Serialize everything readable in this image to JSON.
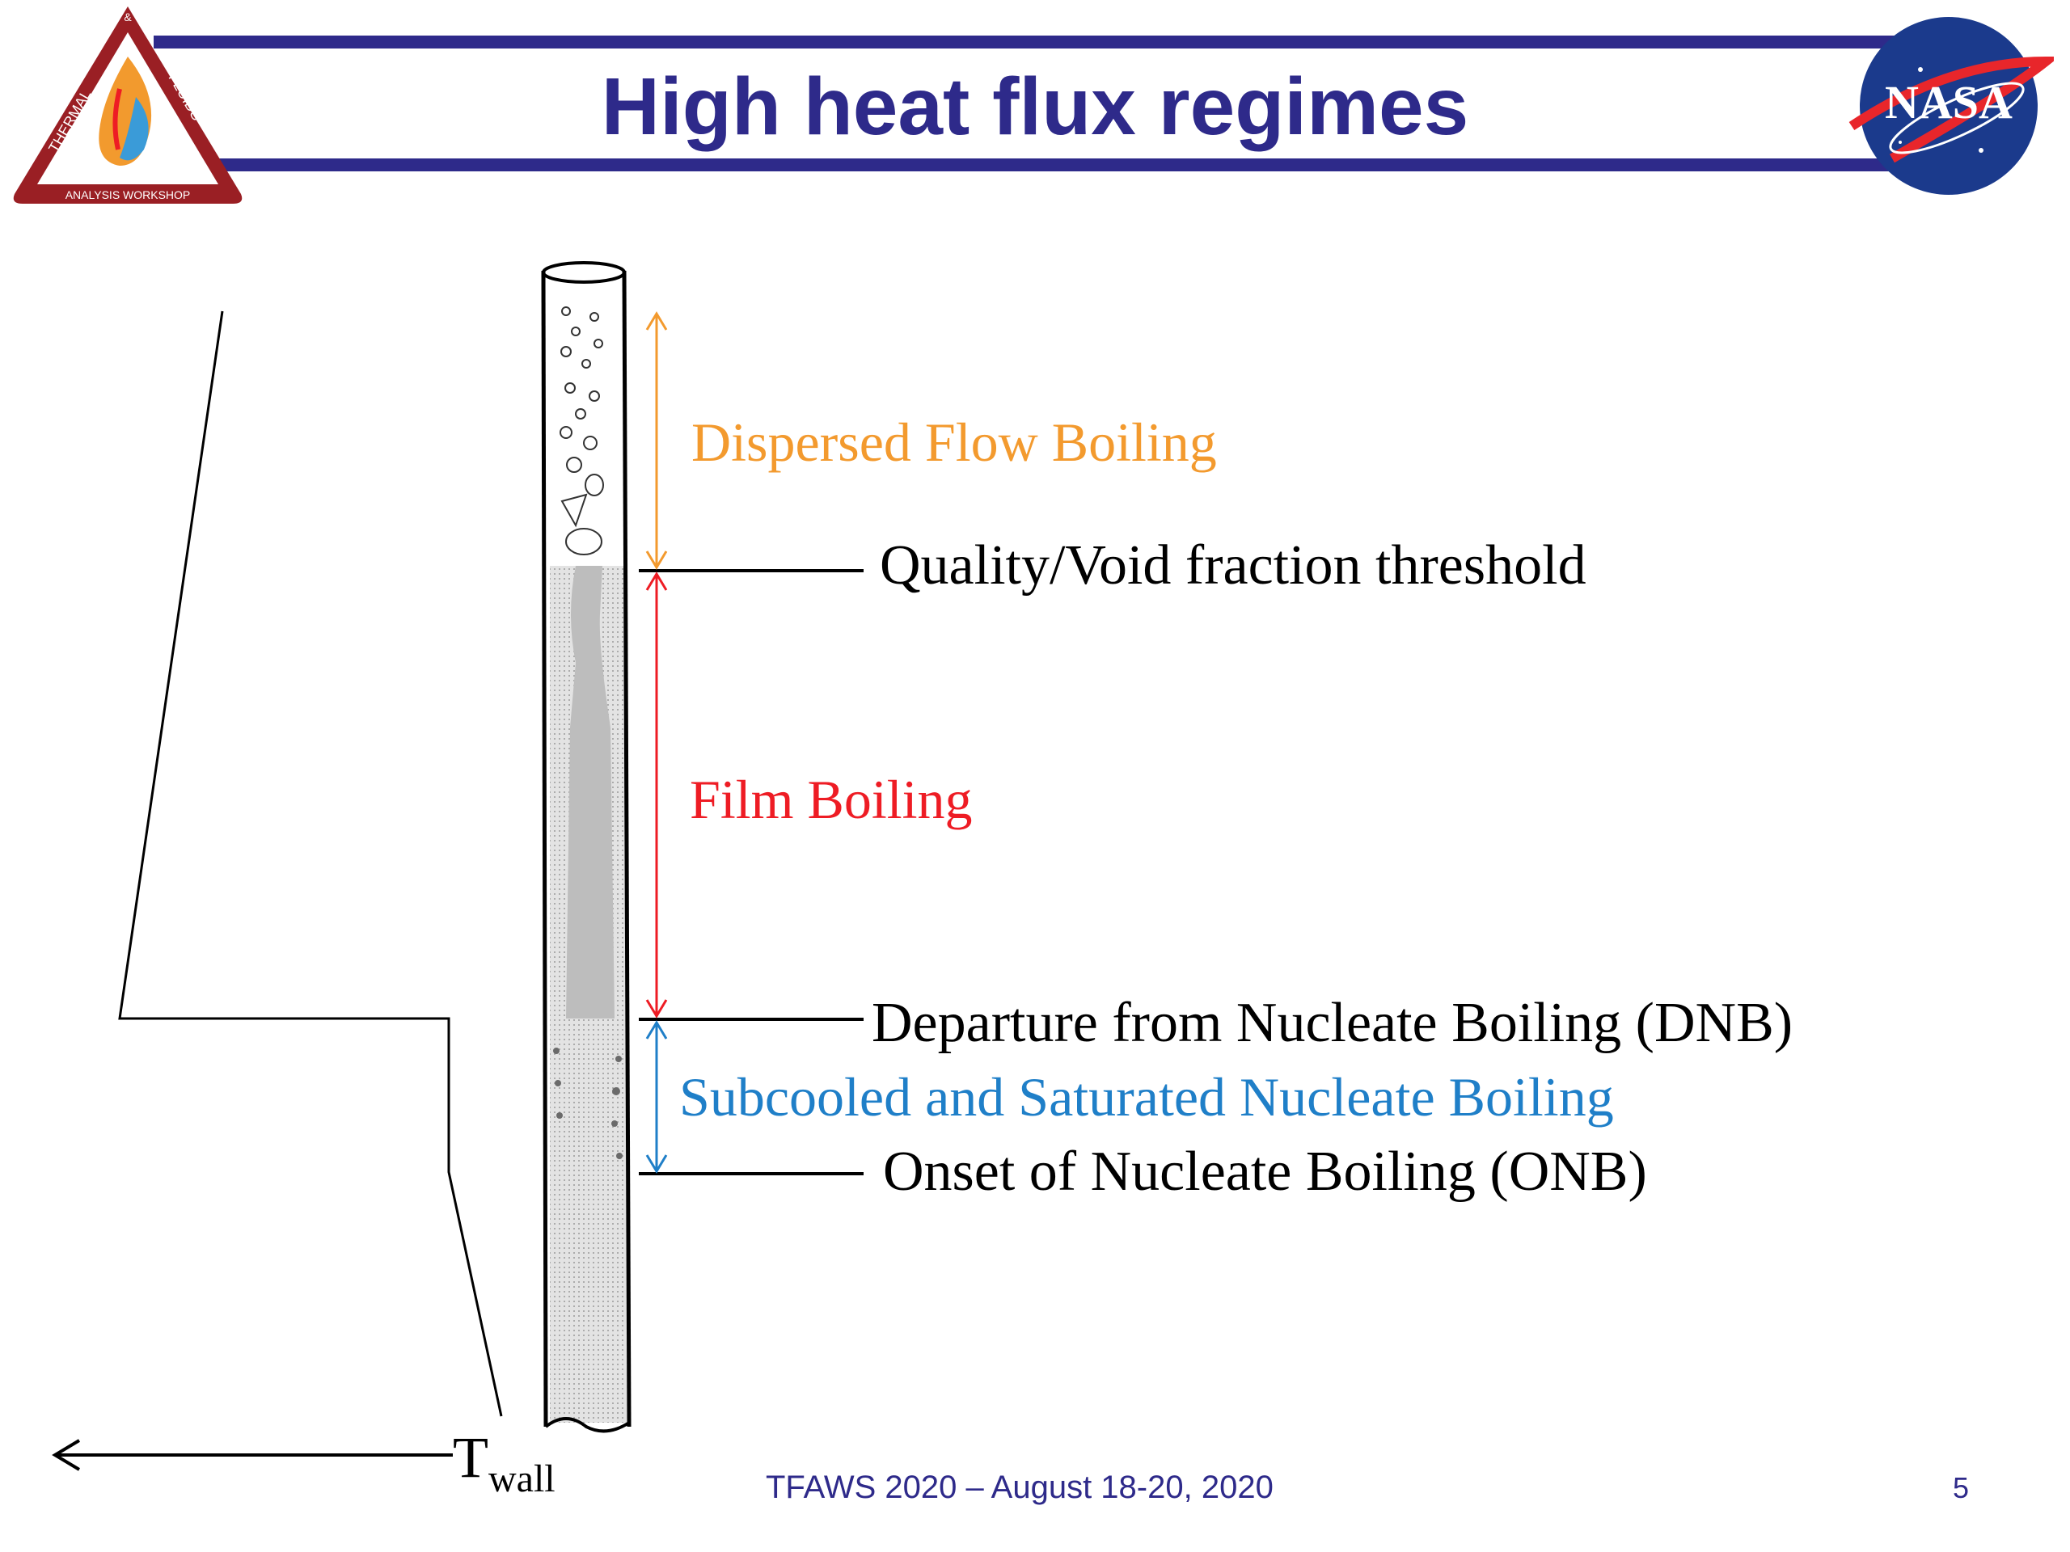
{
  "slide": {
    "title": "High heat flux regimes",
    "footer_text": "TFAWS 2020 – August 18-20, 2020",
    "page_number": "5"
  },
  "logo_tfaws": {
    "icon": "thermal-fluids-triangle-logo",
    "text_top": "&",
    "text_left": "THERMAL",
    "text_right": "FLUIDS",
    "text_bottom": "ANALYSIS WORKSHOP"
  },
  "logo_nasa": {
    "icon": "nasa-meatball-logo",
    "text": "NASA"
  },
  "diagram": {
    "temperature_axis": {
      "label_main": "T",
      "label_sub": "wall"
    },
    "regimes": [
      {
        "label": "Dispersed Flow Boiling",
        "color": "#f39a2e"
      },
      {
        "label": "Film Boiling",
        "color": "#ee1c24"
      },
      {
        "label": "Subcooled and Saturated Nucleate Boiling",
        "color": "#1f7fc8"
      }
    ],
    "thresholds": [
      {
        "label": "Quality/Void fraction threshold"
      },
      {
        "label": "Departure from Nucleate Boiling (DNB)"
      },
      {
        "label": "Onset of Nucleate Boiling (ONB)"
      }
    ]
  }
}
